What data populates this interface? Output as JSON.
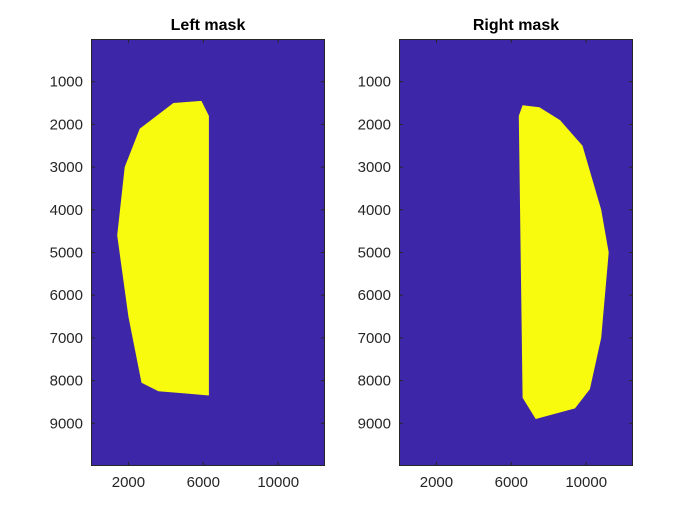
{
  "chart_data": [
    {
      "type": "heatmap",
      "title": "Left mask",
      "xlabel": "",
      "ylabel": "",
      "xlim": [
        0,
        12500
      ],
      "ylim": [
        0,
        10000
      ],
      "y_reversed": true,
      "x_ticks": [
        2000,
        6000,
        10000
      ],
      "x_tick_labels": [
        "2000",
        "6000",
        "10000"
      ],
      "y_ticks": [
        1000,
        2000,
        3000,
        4000,
        5000,
        6000,
        7000,
        8000,
        9000
      ],
      "y_tick_labels": [
        "1000",
        "2000",
        "3000",
        "4000",
        "5000",
        "6000",
        "7000",
        "8000",
        "9000"
      ],
      "grid": false,
      "colors": {
        "background": "#3e26a8",
        "mask": "#f9fb0e"
      },
      "mask_outline": [
        [
          4400,
          1500
        ],
        [
          5900,
          1450
        ],
        [
          6300,
          1800
        ],
        [
          6300,
          8350
        ],
        [
          5000,
          8300
        ],
        [
          3600,
          8250
        ],
        [
          2700,
          8050
        ],
        [
          2000,
          6500
        ],
        [
          1400,
          4600
        ],
        [
          1800,
          3000
        ],
        [
          2600,
          2100
        ]
      ]
    },
    {
      "type": "heatmap",
      "title": "Right mask",
      "xlabel": "",
      "ylabel": "",
      "xlim": [
        0,
        12500
      ],
      "ylim": [
        0,
        10000
      ],
      "y_reversed": true,
      "x_ticks": [
        2000,
        6000,
        10000
      ],
      "x_tick_labels": [
        "2000",
        "6000",
        "10000"
      ],
      "y_ticks": [
        1000,
        2000,
        3000,
        4000,
        5000,
        6000,
        7000,
        8000,
        9000
      ],
      "y_tick_labels": [
        "1000",
        "2000",
        "3000",
        "4000",
        "5000",
        "6000",
        "7000",
        "8000",
        "9000"
      ],
      "grid": false,
      "colors": {
        "background": "#3e26a8",
        "mask": "#f9fb0e"
      },
      "mask_outline": [
        [
          6600,
          1550
        ],
        [
          7500,
          1600
        ],
        [
          8600,
          1900
        ],
        [
          9800,
          2500
        ],
        [
          10800,
          4000
        ],
        [
          11200,
          5000
        ],
        [
          10800,
          7000
        ],
        [
          10200,
          8200
        ],
        [
          9400,
          8650
        ],
        [
          7300,
          8900
        ],
        [
          6600,
          8400
        ],
        [
          6400,
          1800
        ]
      ]
    }
  ]
}
